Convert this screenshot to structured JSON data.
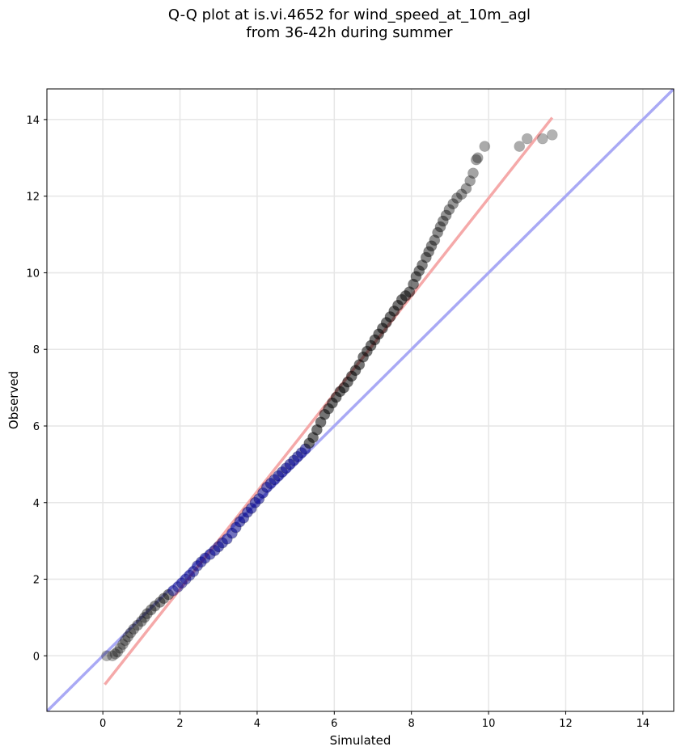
{
  "chart_data": {
    "type": "scatter",
    "title_lines": [
      "Q-Q plot at is.vi.4652 for wind_speed_at_10m_agl",
      "from 36-42h during summer"
    ],
    "xlabel": "Simulated",
    "ylabel": "Observed",
    "xlim": [
      -1.45,
      14.8
    ],
    "ylim": [
      -1.45,
      14.8
    ],
    "xticks": [
      0,
      2,
      4,
      6,
      8,
      10,
      12,
      14
    ],
    "yticks": [
      0,
      2,
      4,
      6,
      8,
      10,
      12,
      14
    ],
    "grid": true,
    "lines": [
      {
        "color": "#a9a9f5",
        "points": [
          [
            -1.45,
            -1.45
          ],
          [
            14.8,
            14.8
          ]
        ]
      },
      {
        "color": "#f5a9a9",
        "points": [
          [
            0.05,
            -0.75
          ],
          [
            11.65,
            14.05
          ]
        ]
      }
    ],
    "point_color": "#000000",
    "highlight_color": "#00008b",
    "quantile_pairs": [
      [
        0.1,
        0.0
      ],
      [
        0.25,
        0.0
      ],
      [
        0.32,
        0.05
      ],
      [
        0.38,
        0.1
      ],
      [
        0.45,
        0.2
      ],
      [
        0.52,
        0.3
      ],
      [
        0.58,
        0.4
      ],
      [
        0.65,
        0.5
      ],
      [
        0.72,
        0.6
      ],
      [
        0.8,
        0.7
      ],
      [
        0.9,
        0.8
      ],
      [
        1.0,
        0.9
      ],
      [
        1.08,
        1.0
      ],
      [
        1.15,
        1.1
      ],
      [
        1.25,
        1.2
      ],
      [
        1.35,
        1.3
      ],
      [
        1.48,
        1.4
      ],
      [
        1.58,
        1.5
      ],
      [
        1.7,
        1.6
      ],
      [
        1.82,
        1.7
      ],
      [
        1.95,
        1.8
      ],
      [
        2.05,
        1.9
      ],
      [
        2.15,
        2.0
      ],
      [
        2.25,
        2.1
      ],
      [
        2.35,
        2.2
      ],
      [
        2.45,
        2.35
      ],
      [
        2.55,
        2.45
      ],
      [
        2.65,
        2.55
      ],
      [
        2.78,
        2.65
      ],
      [
        2.9,
        2.75
      ],
      [
        3.0,
        2.85
      ],
      [
        3.1,
        2.95
      ],
      [
        3.22,
        3.05
      ],
      [
        3.35,
        3.2
      ],
      [
        3.45,
        3.35
      ],
      [
        3.55,
        3.5
      ],
      [
        3.65,
        3.6
      ],
      [
        3.75,
        3.75
      ],
      [
        3.85,
        3.85
      ],
      [
        3.95,
        4.0
      ],
      [
        4.05,
        4.1
      ],
      [
        4.15,
        4.25
      ],
      [
        4.25,
        4.4
      ],
      [
        4.35,
        4.5
      ],
      [
        4.45,
        4.6
      ],
      [
        4.55,
        4.7
      ],
      [
        4.65,
        4.8
      ],
      [
        4.75,
        4.9
      ],
      [
        4.85,
        5.0
      ],
      [
        4.95,
        5.1
      ],
      [
        5.05,
        5.2
      ],
      [
        5.15,
        5.3
      ],
      [
        5.25,
        5.4
      ],
      [
        5.35,
        5.55
      ],
      [
        5.45,
        5.7
      ],
      [
        5.55,
        5.9
      ],
      [
        5.65,
        6.1
      ],
      [
        5.75,
        6.3
      ],
      [
        5.85,
        6.45
      ],
      [
        5.95,
        6.6
      ],
      [
        6.05,
        6.75
      ],
      [
        6.15,
        6.9
      ],
      [
        6.25,
        7.0
      ],
      [
        6.35,
        7.15
      ],
      [
        6.45,
        7.3
      ],
      [
        6.55,
        7.45
      ],
      [
        6.65,
        7.6
      ],
      [
        6.75,
        7.8
      ],
      [
        6.85,
        7.95
      ],
      [
        6.95,
        8.1
      ],
      [
        7.05,
        8.25
      ],
      [
        7.15,
        8.4
      ],
      [
        7.25,
        8.55
      ],
      [
        7.35,
        8.7
      ],
      [
        7.45,
        8.85
      ],
      [
        7.55,
        9.0
      ],
      [
        7.65,
        9.15
      ],
      [
        7.75,
        9.3
      ],
      [
        7.85,
        9.4
      ],
      [
        7.95,
        9.5
      ],
      [
        8.05,
        9.7
      ],
      [
        8.12,
        9.9
      ],
      [
        8.2,
        10.05
      ],
      [
        8.28,
        10.2
      ],
      [
        8.38,
        10.4
      ],
      [
        8.45,
        10.55
      ],
      [
        8.52,
        10.7
      ],
      [
        8.6,
        10.85
      ],
      [
        8.68,
        11.05
      ],
      [
        8.75,
        11.2
      ],
      [
        8.82,
        11.35
      ],
      [
        8.9,
        11.5
      ],
      [
        8.98,
        11.65
      ],
      [
        9.08,
        11.8
      ],
      [
        9.18,
        11.95
      ],
      [
        9.3,
        12.05
      ],
      [
        9.42,
        12.2
      ],
      [
        9.52,
        12.4
      ],
      [
        9.6,
        12.6
      ],
      [
        9.68,
        12.95
      ],
      [
        9.72,
        13.0
      ],
      [
        9.9,
        13.3
      ],
      [
        10.8,
        13.3
      ],
      [
        11.0,
        13.5
      ],
      [
        11.4,
        13.5
      ],
      [
        11.65,
        13.6
      ]
    ]
  }
}
